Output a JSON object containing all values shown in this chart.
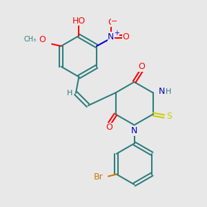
{
  "bg_color": "#e8e8e8",
  "bond_color": "#2d7d7d",
  "colors": {
    "O": "#ff0000",
    "N": "#0000cc",
    "S": "#cccc00",
    "Br": "#cc7700",
    "C": "#2d7d7d",
    "H": "#2d7d7d"
  },
  "bond_lw": 1.5,
  "font_size": 8
}
